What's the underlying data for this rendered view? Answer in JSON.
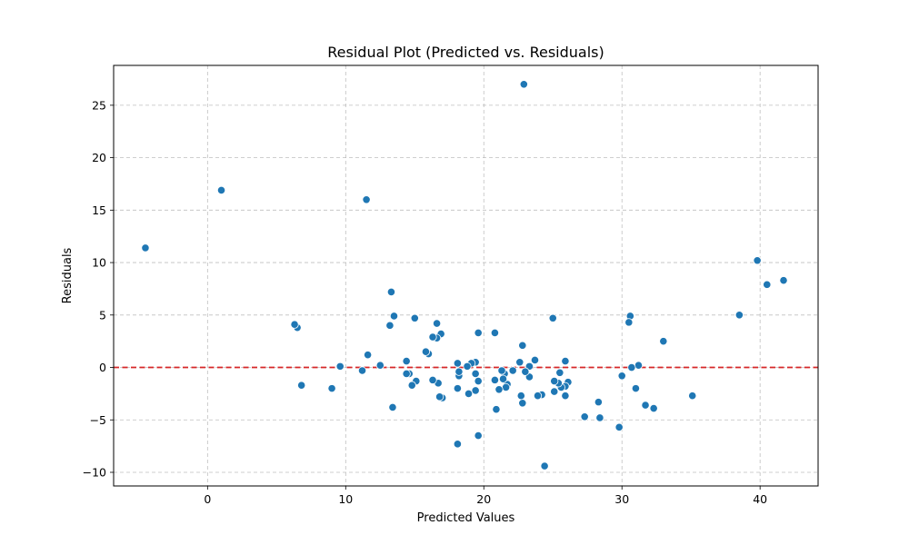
{
  "chart_data": {
    "type": "scatter",
    "title": "Residual Plot (Predicted vs. Residuals)",
    "xlabel": "Predicted Values",
    "ylabel": "Residuals",
    "xlim": [
      -6.8,
      44.2
    ],
    "ylim": [
      -11.3,
      28.8
    ],
    "xticks": [
      0,
      10,
      20,
      30,
      40
    ],
    "yticks": [
      -10,
      -5,
      0,
      5,
      10,
      15,
      20,
      25
    ],
    "grid": true,
    "point_color": "#1f77b4",
    "reference_line": {
      "y": 0,
      "color": "#d62728",
      "style": "dashed"
    },
    "points": [
      [
        -4.5,
        11.4
      ],
      [
        1.0,
        16.9
      ],
      [
        11.5,
        16.0
      ],
      [
        22.9,
        27.0
      ],
      [
        39.8,
        10.2
      ],
      [
        40.5,
        7.9
      ],
      [
        41.7,
        8.3
      ],
      [
        38.5,
        5.0
      ],
      [
        33.0,
        2.5
      ],
      [
        35.1,
        -2.7
      ],
      [
        32.3,
        -3.9
      ],
      [
        31.7,
        -3.6
      ],
      [
        31.0,
        -2.0
      ],
      [
        31.2,
        0.2
      ],
      [
        30.7,
        0.0
      ],
      [
        30.0,
        -0.8
      ],
      [
        30.6,
        4.9
      ],
      [
        30.5,
        4.3
      ],
      [
        29.8,
        -5.7
      ],
      [
        28.4,
        -4.8
      ],
      [
        28.3,
        -3.3
      ],
      [
        27.3,
        -4.7
      ],
      [
        26.1,
        -1.4
      ],
      [
        25.9,
        -1.8
      ],
      [
        25.9,
        -2.7
      ],
      [
        25.9,
        0.6
      ],
      [
        25.6,
        -1.9
      ],
      [
        25.4,
        -1.5
      ],
      [
        25.5,
        -0.5
      ],
      [
        25.1,
        -1.3
      ],
      [
        25.1,
        -2.3
      ],
      [
        25.0,
        4.7
      ],
      [
        24.4,
        -9.4
      ],
      [
        24.2,
        -2.6
      ],
      [
        23.9,
        -2.7
      ],
      [
        23.7,
        0.7
      ],
      [
        23.3,
        -0.9
      ],
      [
        23.3,
        0.1
      ],
      [
        23.0,
        -0.4
      ],
      [
        22.8,
        2.1
      ],
      [
        22.8,
        -3.4
      ],
      [
        22.7,
        -2.7
      ],
      [
        22.6,
        0.5
      ],
      [
        22.1,
        -0.3
      ],
      [
        21.7,
        -1.6
      ],
      [
        21.6,
        -1.9
      ],
      [
        21.5,
        -0.6
      ],
      [
        21.4,
        -1.1
      ],
      [
        21.3,
        -0.3
      ],
      [
        21.1,
        -2.1
      ],
      [
        20.9,
        -4.0
      ],
      [
        20.8,
        -1.2
      ],
      [
        20.8,
        3.3
      ],
      [
        19.6,
        -6.5
      ],
      [
        19.6,
        3.3
      ],
      [
        19.6,
        -1.3
      ],
      [
        19.4,
        -0.6
      ],
      [
        19.4,
        -2.2
      ],
      [
        19.4,
        0.5
      ],
      [
        19.1,
        0.4
      ],
      [
        18.9,
        -2.5
      ],
      [
        18.8,
        0.1
      ],
      [
        18.2,
        -0.8
      ],
      [
        18.2,
        -0.4
      ],
      [
        18.1,
        0.4
      ],
      [
        18.1,
        -2.0
      ],
      [
        18.1,
        -7.3
      ],
      [
        17.0,
        -2.9
      ],
      [
        16.9,
        3.2
      ],
      [
        16.8,
        -2.8
      ],
      [
        16.7,
        -1.5
      ],
      [
        16.6,
        2.8
      ],
      [
        16.6,
        4.2
      ],
      [
        16.3,
        2.9
      ],
      [
        16.3,
        -1.2
      ],
      [
        16.0,
        1.3
      ],
      [
        15.8,
        1.5
      ],
      [
        15.1,
        -1.3
      ],
      [
        15.0,
        4.7
      ],
      [
        14.8,
        -1.7
      ],
      [
        14.6,
        -0.6
      ],
      [
        14.4,
        -0.6
      ],
      [
        14.4,
        0.6
      ],
      [
        13.5,
        4.9
      ],
      [
        13.4,
        -3.8
      ],
      [
        13.3,
        7.2
      ],
      [
        13.2,
        4.0
      ],
      [
        12.5,
        0.2
      ],
      [
        11.6,
        1.2
      ],
      [
        11.2,
        -0.3
      ],
      [
        9.6,
        0.1
      ],
      [
        9.0,
        -2.0
      ],
      [
        6.8,
        -1.7
      ],
      [
        6.5,
        3.8
      ],
      [
        6.3,
        4.1
      ]
    ]
  }
}
